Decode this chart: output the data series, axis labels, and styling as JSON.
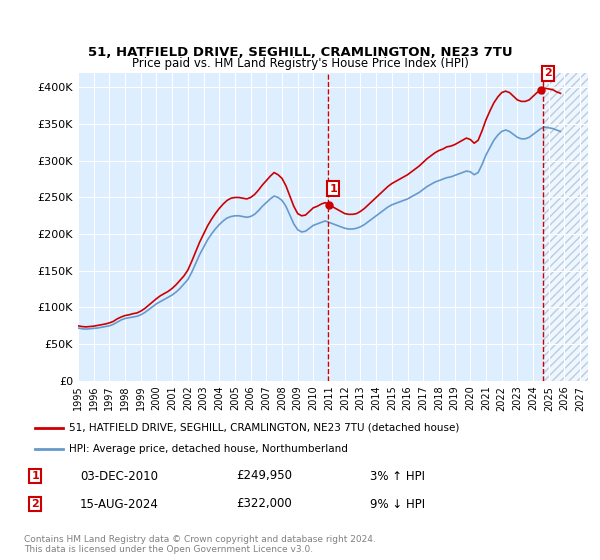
{
  "title": "51, HATFIELD DRIVE, SEGHILL, CRAMLINGTON, NE23 7TU",
  "subtitle": "Price paid vs. HM Land Registry's House Price Index (HPI)",
  "legend_line1": "51, HATFIELD DRIVE, SEGHILL, CRAMLINGTON, NE23 7TU (detached house)",
  "legend_line2": "HPI: Average price, detached house, Northumberland",
  "footnote": "Contains HM Land Registry data © Crown copyright and database right 2024.\nThis data is licensed under the Open Government Licence v3.0.",
  "marker1_label": "1",
  "marker1_date": "03-DEC-2010",
  "marker1_price": "£249,950",
  "marker1_hpi": "3% ↑ HPI",
  "marker2_label": "2",
  "marker2_date": "15-AUG-2024",
  "marker2_price": "£322,000",
  "marker2_hpi": "9% ↓ HPI",
  "red_color": "#cc0000",
  "blue_color": "#6699cc",
  "bg_color": "#ddeeff",
  "future_hatch_color": "#bbccdd",
  "ylim": [
    0,
    420000
  ],
  "xlim_start": 1995.0,
  "xlim_end": 2027.5,
  "marker1_x": 2010.92,
  "marker2_x": 2024.62,
  "hpi_data": {
    "years": [
      1995.0,
      1995.25,
      1995.5,
      1995.75,
      1996.0,
      1996.25,
      1996.5,
      1996.75,
      1997.0,
      1997.25,
      1997.5,
      1997.75,
      1998.0,
      1998.25,
      1998.5,
      1998.75,
      1999.0,
      1999.25,
      1999.5,
      1999.75,
      2000.0,
      2000.25,
      2000.5,
      2000.75,
      2001.0,
      2001.25,
      2001.5,
      2001.75,
      2002.0,
      2002.25,
      2002.5,
      2002.75,
      2003.0,
      2003.25,
      2003.5,
      2003.75,
      2004.0,
      2004.25,
      2004.5,
      2004.75,
      2005.0,
      2005.25,
      2005.5,
      2005.75,
      2006.0,
      2006.25,
      2006.5,
      2006.75,
      2007.0,
      2007.25,
      2007.5,
      2007.75,
      2008.0,
      2008.25,
      2008.5,
      2008.75,
      2009.0,
      2009.25,
      2009.5,
      2009.75,
      2010.0,
      2010.25,
      2010.5,
      2010.75,
      2011.0,
      2011.25,
      2011.5,
      2011.75,
      2012.0,
      2012.25,
      2012.5,
      2012.75,
      2013.0,
      2013.25,
      2013.5,
      2013.75,
      2014.0,
      2014.25,
      2014.5,
      2014.75,
      2015.0,
      2015.25,
      2015.5,
      2015.75,
      2016.0,
      2016.25,
      2016.5,
      2016.75,
      2017.0,
      2017.25,
      2017.5,
      2017.75,
      2018.0,
      2018.25,
      2018.5,
      2018.75,
      2019.0,
      2019.25,
      2019.5,
      2019.75,
      2020.0,
      2020.25,
      2020.5,
      2020.75,
      2021.0,
      2021.25,
      2021.5,
      2021.75,
      2022.0,
      2022.25,
      2022.5,
      2022.75,
      2023.0,
      2023.25,
      2023.5,
      2023.75,
      2024.0,
      2024.25,
      2024.5,
      2024.75,
      2025.0,
      2025.25,
      2025.5,
      2025.75
    ],
    "values": [
      72000,
      71000,
      70500,
      71000,
      71500,
      72000,
      73000,
      74000,
      75000,
      77000,
      80000,
      83000,
      85000,
      86000,
      87000,
      88000,
      90000,
      93000,
      97000,
      101000,
      105000,
      108000,
      111000,
      114000,
      117000,
      121000,
      126000,
      132000,
      138000,
      148000,
      160000,
      172000,
      182000,
      192000,
      200000,
      207000,
      213000,
      218000,
      222000,
      224000,
      225000,
      225000,
      224000,
      223000,
      224000,
      227000,
      232000,
      238000,
      243000,
      248000,
      252000,
      250000,
      246000,
      238000,
      226000,
      214000,
      206000,
      203000,
      204000,
      208000,
      212000,
      214000,
      216000,
      218000,
      216000,
      214000,
      212000,
      210000,
      208000,
      207000,
      207000,
      208000,
      210000,
      213000,
      217000,
      221000,
      225000,
      229000,
      233000,
      237000,
      240000,
      242000,
      244000,
      246000,
      248000,
      251000,
      254000,
      257000,
      261000,
      265000,
      268000,
      271000,
      273000,
      275000,
      277000,
      278000,
      280000,
      282000,
      284000,
      286000,
      285000,
      281000,
      284000,
      295000,
      308000,
      318000,
      328000,
      335000,
      340000,
      342000,
      340000,
      336000,
      332000,
      330000,
      330000,
      332000,
      336000,
      340000,
      344000,
      346000,
      345000,
      344000,
      342000,
      340000
    ]
  },
  "red_data": {
    "years": [
      1995.0,
      1995.25,
      1995.5,
      1995.75,
      1996.0,
      1996.25,
      1996.5,
      1996.75,
      1997.0,
      1997.25,
      1997.5,
      1997.75,
      1998.0,
      1998.25,
      1998.5,
      1998.75,
      1999.0,
      1999.25,
      1999.5,
      1999.75,
      2000.0,
      2000.25,
      2000.5,
      2000.75,
      2001.0,
      2001.25,
      2001.5,
      2001.75,
      2002.0,
      2002.25,
      2002.5,
      2002.75,
      2003.0,
      2003.25,
      2003.5,
      2003.75,
      2004.0,
      2004.25,
      2004.5,
      2004.75,
      2005.0,
      2005.25,
      2005.5,
      2005.75,
      2006.0,
      2006.25,
      2006.5,
      2006.75,
      2007.0,
      2007.25,
      2007.5,
      2007.75,
      2008.0,
      2008.25,
      2008.5,
      2008.75,
      2009.0,
      2009.25,
      2009.5,
      2009.75,
      2010.0,
      2010.25,
      2010.5,
      2010.75,
      2011.0,
      2011.25,
      2011.5,
      2011.75,
      2012.0,
      2012.25,
      2012.5,
      2012.75,
      2013.0,
      2013.25,
      2013.5,
      2013.75,
      2014.0,
      2014.25,
      2014.5,
      2014.75,
      2015.0,
      2015.25,
      2015.5,
      2015.75,
      2016.0,
      2016.25,
      2016.5,
      2016.75,
      2017.0,
      2017.25,
      2017.5,
      2017.75,
      2018.0,
      2018.25,
      2018.5,
      2018.75,
      2019.0,
      2019.25,
      2019.5,
      2019.75,
      2020.0,
      2020.25,
      2020.5,
      2020.75,
      2021.0,
      2021.25,
      2021.5,
      2021.75,
      2022.0,
      2022.25,
      2022.5,
      2022.75,
      2023.0,
      2023.25,
      2023.5,
      2023.75,
      2024.0,
      2024.25,
      2024.5,
      2024.75,
      2025.0,
      2025.25,
      2025.5,
      2025.75
    ],
    "values": [
      75000,
      74000,
      73500,
      74000,
      74500,
      75500,
      76500,
      77500,
      79000,
      81000,
      84500,
      87000,
      89000,
      90000,
      91500,
      92500,
      95000,
      98500,
      103000,
      107500,
      112000,
      116000,
      119000,
      122000,
      126000,
      131000,
      137000,
      143000,
      151000,
      163000,
      176000,
      189000,
      200000,
      211000,
      220000,
      228000,
      235000,
      241000,
      246000,
      249000,
      250000,
      250000,
      249000,
      248000,
      250000,
      254000,
      260000,
      267000,
      273000,
      279000,
      284000,
      281000,
      276000,
      266000,
      252000,
      238000,
      228000,
      225000,
      226000,
      231000,
      236000,
      238000,
      241000,
      243000,
      240000,
      237000,
      234000,
      231000,
      228000,
      227000,
      227000,
      228000,
      231000,
      235000,
      240000,
      245000,
      250000,
      255000,
      260000,
      265000,
      269000,
      272000,
      275000,
      278000,
      281000,
      285000,
      289000,
      293000,
      298000,
      303000,
      307000,
      311000,
      314000,
      316000,
      319000,
      320000,
      322000,
      325000,
      328000,
      331000,
      329000,
      324000,
      328000,
      341000,
      356000,
      368000,
      379000,
      387000,
      393000,
      395000,
      393000,
      388000,
      383000,
      381000,
      381000,
      383000,
      388000,
      393000,
      397000,
      399000,
      398000,
      397000,
      394000,
      392000
    ]
  },
  "future_start": 2024.625,
  "yticks": [
    0,
    50000,
    100000,
    150000,
    200000,
    250000,
    300000,
    350000,
    400000
  ],
  "ytick_labels": [
    "£0",
    "£50K",
    "£100K",
    "£150K",
    "£200K",
    "£250K",
    "£300K",
    "£350K",
    "£400K"
  ],
  "xticks": [
    1995,
    1996,
    1997,
    1998,
    1999,
    2000,
    2001,
    2002,
    2003,
    2004,
    2005,
    2006,
    2007,
    2008,
    2009,
    2010,
    2011,
    2012,
    2013,
    2014,
    2015,
    2016,
    2017,
    2018,
    2019,
    2020,
    2021,
    2022,
    2023,
    2024,
    2025,
    2026,
    2027
  ]
}
